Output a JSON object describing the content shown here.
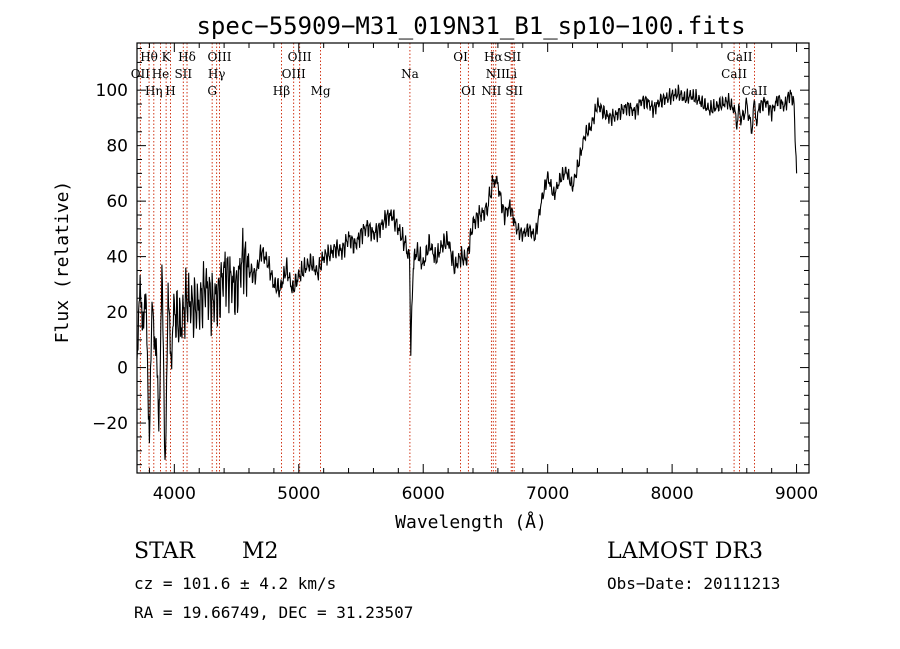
{
  "chart_data": {
    "type": "line",
    "title": "spec−55909−M31_019N31_B1_sp10−100.fits",
    "xlabel": "Wavelength (Å)",
    "ylabel": "Flux (relative)",
    "xlim": [
      3700,
      9100
    ],
    "ylim": [
      -38,
      117
    ],
    "xticks": [
      4000,
      5000,
      6000,
      7000,
      8000,
      9000
    ],
    "yticks": [
      -20,
      0,
      20,
      40,
      60,
      80,
      100
    ],
    "ytick_labels": [
      "−20",
      "0",
      "20",
      "40",
      "60",
      "80",
      "100"
    ],
    "grid": false,
    "spectrum": {
      "name": "flux",
      "color": "#000000",
      "x": [
        3700,
        3725,
        3750,
        3775,
        3800,
        3825,
        3850,
        3875,
        3900,
        3925,
        3950,
        3975,
        4000,
        4050,
        4100,
        4150,
        4200,
        4250,
        4300,
        4350,
        4400,
        4450,
        4500,
        4550,
        4600,
        4650,
        4700,
        4750,
        4800,
        4850,
        4900,
        4950,
        5000,
        5050,
        5100,
        5150,
        5200,
        5250,
        5300,
        5350,
        5400,
        5450,
        5500,
        5550,
        5600,
        5650,
        5700,
        5750,
        5800,
        5850,
        5890,
        5900,
        5920,
        5950,
        6000,
        6050,
        6100,
        6150,
        6200,
        6250,
        6300,
        6350,
        6400,
        6450,
        6500,
        6540,
        6563,
        6600,
        6650,
        6700,
        6750,
        6800,
        6850,
        6900,
        6950,
        7000,
        7050,
        7100,
        7150,
        7200,
        7250,
        7300,
        7350,
        7400,
        7450,
        7500,
        7550,
        7600,
        7650,
        7700,
        7750,
        7800,
        7850,
        7900,
        7950,
        8000,
        8050,
        8100,
        8150,
        8200,
        8250,
        8300,
        8350,
        8400,
        8450,
        8500,
        8520,
        8540,
        8560,
        8600,
        8640,
        8660,
        8680,
        8700,
        8750,
        8800,
        8850,
        8900,
        8950,
        8980,
        9000
      ],
      "y": [
        10,
        20,
        25,
        15,
        -22,
        25,
        5,
        -15,
        28,
        -28,
        18,
        8,
        20,
        15,
        25,
        22,
        22,
        30,
        24,
        25,
        35,
        32,
        28,
        40,
        35,
        33,
        42,
        38,
        30,
        28,
        36,
        28,
        33,
        36,
        38,
        34,
        40,
        41,
        43,
        42,
        47,
        44,
        48,
        51,
        48,
        50,
        54,
        55,
        50,
        45,
        40,
        5,
        38,
        42,
        37,
        45,
        39,
        44,
        46,
        36,
        40,
        39,
        52,
        55,
        56,
        62,
        68,
        66,
        55,
        58,
        50,
        48,
        50,
        47,
        60,
        69,
        62,
        68,
        71,
        65,
        74,
        84,
        87,
        95,
        92,
        90,
        91,
        93,
        94,
        92,
        96,
        96,
        93,
        96,
        97,
        98,
        99,
        97,
        98,
        97,
        95,
        93,
        94,
        95,
        96,
        93,
        88,
        93,
        89,
        95,
        85,
        96,
        88,
        94,
        96,
        92,
        97,
        94,
        99,
        95,
        70
      ]
    },
    "lines_lower": [
      {
        "label": "OII",
        "wave": 3727
      },
      {
        "label": "Hθ",
        "wave": 3797
      },
      {
        "label": "Hη",
        "wave": 3835
      },
      {
        "label": "He",
        "wave": 3889
      },
      {
        "label": "K",
        "wave": 3934
      },
      {
        "label": "H",
        "wave": 3969
      },
      {
        "label": "SII",
        "wave": 4072
      },
      {
        "label": "Hδ",
        "wave": 4102
      },
      {
        "label": "G",
        "wave": 4304
      },
      {
        "label": "Hγ",
        "wave": 4340
      },
      {
        "label": "OIII",
        "wave": 4363
      },
      {
        "label": "Hβ",
        "wave": 4861
      },
      {
        "label": "OIII",
        "wave": 4959
      },
      {
        "label": "OIII",
        "wave": 5007
      },
      {
        "label": "Mg",
        "wave": 5175
      },
      {
        "label": "Na",
        "wave": 5893
      },
      {
        "label": "OI",
        "wave": 6300
      },
      {
        "label": "OI",
        "wave": 6363
      },
      {
        "label": "NII",
        "wave": 6548
      },
      {
        "label": "Hα",
        "wave": 6563
      },
      {
        "label": "NII",
        "wave": 6583
      },
      {
        "label": "Li",
        "wave": 6707
      },
      {
        "label": "SII",
        "wave": 6716
      },
      {
        "label": "SII",
        "wave": 6731
      },
      {
        "label": "CaII",
        "wave": 8498
      },
      {
        "label": "CaII",
        "wave": 8542
      },
      {
        "label": "CaII",
        "wave": 8662
      }
    ]
  },
  "line_labels": [
    {
      "text": "Hθ",
      "row": 0,
      "wave": 3797
    },
    {
      "text": "K",
      "row": 0,
      "wave": 3934
    },
    {
      "text": "Hδ",
      "row": 0,
      "wave": 4102
    },
    {
      "text": "OIII",
      "row": 0,
      "wave": 4363
    },
    {
      "text": "OIII",
      "row": 0,
      "wave": 5007
    },
    {
      "text": "OI",
      "row": 0,
      "wave": 6300
    },
    {
      "text": "Hα",
      "row": 0,
      "wave": 6563
    },
    {
      "text": "SII",
      "row": 0,
      "wave": 6716
    },
    {
      "text": "CaII",
      "row": 0,
      "wave": 8542
    },
    {
      "text": "OII",
      "row": 1,
      "wave": 3727
    },
    {
      "text": "He",
      "row": 1,
      "wave": 3889
    },
    {
      "text": "SII",
      "row": 1,
      "wave": 4072
    },
    {
      "text": "Hγ",
      "row": 1,
      "wave": 4340
    },
    {
      "text": "OIII",
      "row": 1,
      "wave": 4959
    },
    {
      "text": "Na",
      "row": 1,
      "wave": 5893
    },
    {
      "text": "NII",
      "row": 1,
      "wave": 6583
    },
    {
      "text": "Li",
      "row": 1,
      "wave": 6707
    },
    {
      "text": "CaII",
      "row": 1,
      "wave": 8498
    },
    {
      "text": "Hη",
      "row": 2,
      "wave": 3835
    },
    {
      "text": "H",
      "row": 2,
      "wave": 3969
    },
    {
      "text": "G",
      "row": 2,
      "wave": 4304
    },
    {
      "text": "Hβ",
      "row": 2,
      "wave": 4861
    },
    {
      "text": "Mg",
      "row": 2,
      "wave": 5175
    },
    {
      "text": "OI",
      "row": 2,
      "wave": 6363
    },
    {
      "text": "NII",
      "row": 2,
      "wave": 6548
    },
    {
      "text": "SII",
      "row": 2,
      "wave": 6731
    },
    {
      "text": "CaII",
      "row": 2,
      "wave": 8662
    }
  ],
  "footer": {
    "class_label": "STAR",
    "subclass": "M2",
    "survey": "LAMOST DR3",
    "velocity": "cz = 101.6 ± 4.2 km/s",
    "obs_date": "Obs−Date: 20111213",
    "coords": "RA =  19.66749, DEC =  31.23507"
  },
  "colors": {
    "line_marker": "#cc2200",
    "spectrum": "#000000",
    "axes": "#000000"
  }
}
